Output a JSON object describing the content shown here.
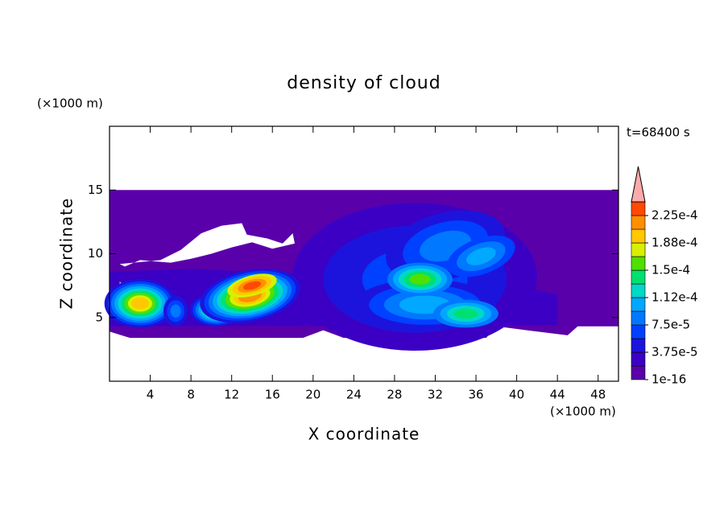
{
  "chart_data": {
    "type": "contour",
    "title": "density of cloud",
    "x_label": "X coordinate",
    "y_label": "Z coordinate",
    "x_unit": "(×1000 m)",
    "y_unit": "(×1000 m)",
    "time_label": "t=68400 s",
    "xlim": [
      0,
      50
    ],
    "xticks": [
      4,
      8,
      12,
      16,
      20,
      24,
      28,
      32,
      36,
      40,
      44,
      48
    ],
    "ylim": [
      0,
      20
    ],
    "yticks": [
      5,
      10,
      15
    ],
    "clim": [
      0,
      0.00024375
    ],
    "cticks": [
      {
        "value": 1e-16,
        "label": "1e-16"
      },
      {
        "value": 3.75e-05,
        "label": "3.75e-5"
      },
      {
        "value": 7.5e-05,
        "label": "7.5e-5"
      },
      {
        "value": 0.0001125,
        "label": "1.12e-4"
      },
      {
        "value": 0.00015,
        "label": "1.5e-4"
      },
      {
        "value": 0.0001875,
        "label": "1.88e-4"
      },
      {
        "value": 0.000225,
        "label": "2.25e-4"
      }
    ],
    "colors": [
      "#5a00aa",
      "#3c00c4",
      "#1c14dc",
      "#0040ff",
      "#0078ff",
      "#00a8ff",
      "#00d8c8",
      "#00e070",
      "#50e000",
      "#d8f000",
      "#ffc800",
      "#ff9000",
      "#ff4a00"
    ],
    "extend_color": "#ffaaaa"
  }
}
